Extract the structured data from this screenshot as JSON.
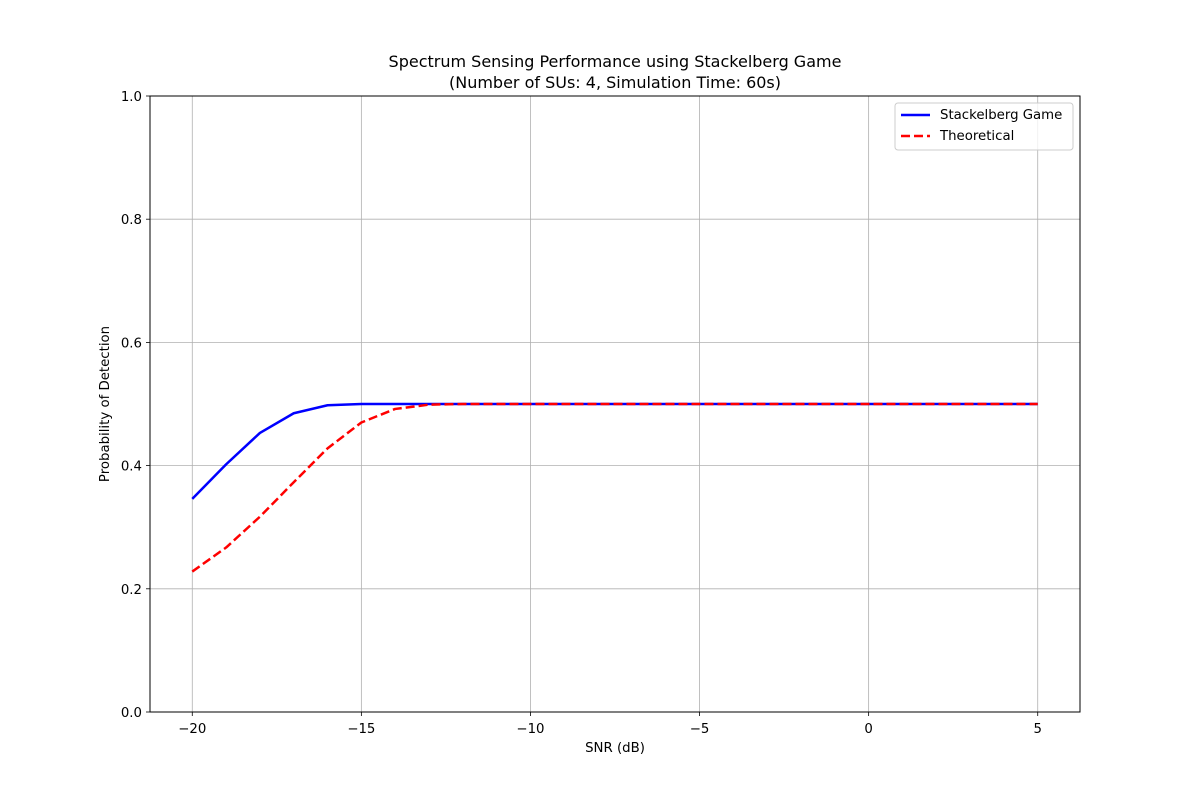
{
  "chart_data": {
    "type": "line",
    "title": "Spectrum Sensing Performance using Stackelberg Game",
    "subtitle": "(Number of SUs: 4, Simulation Time: 60s)",
    "xlabel": "SNR (dB)",
    "ylabel": "Probability of Detection",
    "xlim": [
      -21.25,
      6.25
    ],
    "ylim": [
      0.0,
      1.0
    ],
    "xticks": [
      -20,
      -15,
      -10,
      -5,
      0,
      5
    ],
    "xtick_labels": [
      "−20",
      "−15",
      "−10",
      "−5",
      "0",
      "5"
    ],
    "yticks": [
      0.0,
      0.2,
      0.4,
      0.6,
      0.8,
      1.0
    ],
    "ytick_labels": [
      "0.0",
      "0.2",
      "0.4",
      "0.6",
      "0.8",
      "1.0"
    ],
    "grid": true,
    "legend_position": "top-right",
    "x": [
      -20,
      -19,
      -18,
      -17,
      -16,
      -15,
      -14,
      -13,
      -12,
      -11,
      -10,
      -9,
      -8,
      -7,
      -6,
      -5,
      -4,
      -3,
      -2,
      -1,
      0,
      1,
      2,
      3,
      4,
      5
    ],
    "series": [
      {
        "name": "Stackelberg Game",
        "color": "#0000ff",
        "style": "solid",
        "values": [
          0.346,
          0.402,
          0.453,
          0.485,
          0.498,
          0.5,
          0.5,
          0.5,
          0.5,
          0.5,
          0.5,
          0.5,
          0.5,
          0.5,
          0.5,
          0.5,
          0.5,
          0.5,
          0.5,
          0.5,
          0.5,
          0.5,
          0.5,
          0.5,
          0.5,
          0.5
        ]
      },
      {
        "name": "Theoretical",
        "color": "#ff0000",
        "style": "dashed",
        "values": [
          0.228,
          0.267,
          0.317,
          0.373,
          0.428,
          0.47,
          0.492,
          0.499,
          0.5,
          0.5,
          0.5,
          0.5,
          0.5,
          0.5,
          0.5,
          0.5,
          0.5,
          0.5,
          0.5,
          0.5,
          0.5,
          0.5,
          0.5,
          0.5,
          0.5,
          0.5
        ]
      }
    ]
  }
}
